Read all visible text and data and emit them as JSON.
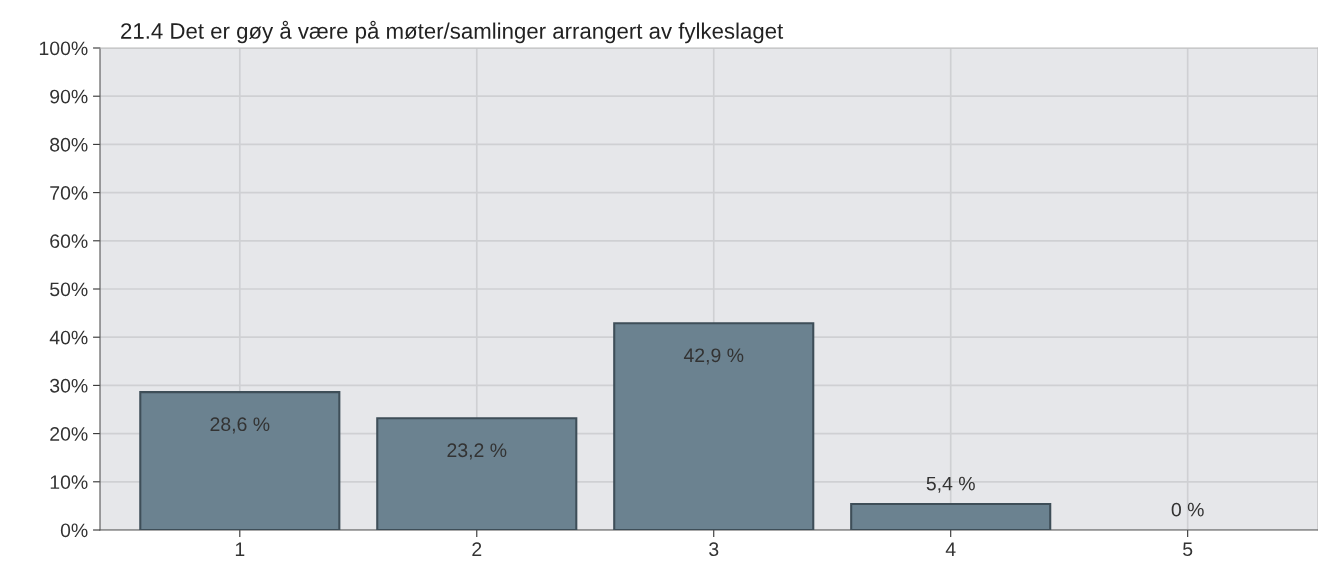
{
  "chart_data": {
    "type": "bar",
    "title": "21.4 Det er gøy å være på møter/samlinger arrangert av fylkeslaget",
    "categories": [
      "1",
      "2",
      "3",
      "4",
      "5"
    ],
    "values": [
      28.6,
      23.2,
      42.9,
      5.4,
      0
    ],
    "value_labels": [
      "28,6 %",
      "23,2 %",
      "42,9 %",
      "5,4 %",
      "0 %"
    ],
    "color": "#6b8290",
    "ylim": [
      0,
      100
    ],
    "yticks": [
      {
        "value": 0,
        "label": "0%"
      },
      {
        "value": 10,
        "label": "10%"
      },
      {
        "value": 20,
        "label": "20%"
      },
      {
        "value": 30,
        "label": "30%"
      },
      {
        "value": 40,
        "label": "40%"
      },
      {
        "value": 50,
        "label": "50%"
      },
      {
        "value": 60,
        "label": "60%"
      },
      {
        "value": 70,
        "label": "70%"
      },
      {
        "value": 80,
        "label": "80%"
      },
      {
        "value": 90,
        "label": "90%"
      },
      {
        "value": 100,
        "label": "100%"
      }
    ],
    "grid": true
  }
}
